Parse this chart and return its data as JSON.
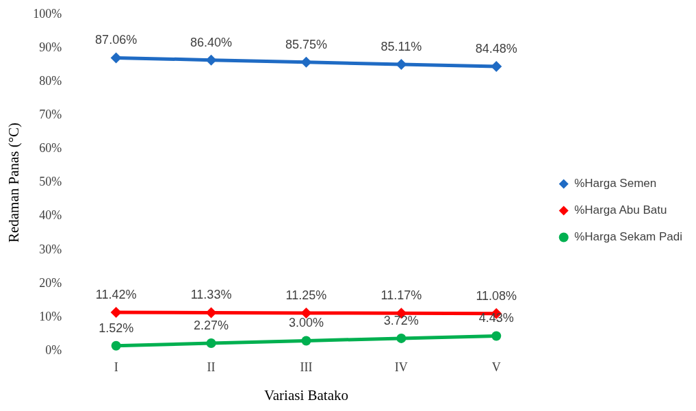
{
  "chart_data": {
    "type": "line",
    "xlabel": "Variasi Batako",
    "ylabel": "Redaman Panas (°C)",
    "categories": [
      "I",
      "II",
      "III",
      "IV",
      "V"
    ],
    "ylim": [
      0,
      100
    ],
    "yticks": [
      {
        "value": 0,
        "label": "0%"
      },
      {
        "value": 10,
        "label": "10%"
      },
      {
        "value": 20,
        "label": "20%"
      },
      {
        "value": 30,
        "label": "30%"
      },
      {
        "value": 40,
        "label": "40%"
      },
      {
        "value": 50,
        "label": "50%"
      },
      {
        "value": 60,
        "label": "60%"
      },
      {
        "value": 70,
        "label": "70%"
      },
      {
        "value": 80,
        "label": "80%"
      },
      {
        "value": 90,
        "label": "90%"
      },
      {
        "value": 100,
        "label": "100%"
      }
    ],
    "series": [
      {
        "name": "%Harga Semen",
        "color": "#1f6bc4",
        "marker": "diamond",
        "values": [
          87.06,
          86.4,
          85.75,
          85.11,
          84.48
        ],
        "value_labels": [
          "87.06%",
          "86.40%",
          "85.75%",
          "85.11%",
          "84.48%"
        ]
      },
      {
        "name": "%Harga Abu Batu",
        "color": "#ff0000",
        "marker": "diamond",
        "values": [
          11.42,
          11.33,
          11.25,
          11.17,
          11.08
        ],
        "value_labels": [
          "11.42%",
          "11.33%",
          "11.25%",
          "11.17%",
          "11.08%"
        ]
      },
      {
        "name": "%Harga Sekam Padi",
        "color": "#00b050",
        "marker": "circle",
        "values": [
          1.52,
          2.27,
          3.0,
          3.72,
          4.43
        ],
        "value_labels": [
          "1.52%",
          "2.27%",
          "3.00%",
          "3.72%",
          "4.43%"
        ]
      }
    ],
    "grid": false,
    "legend": "right",
    "line_style": "solid"
  }
}
